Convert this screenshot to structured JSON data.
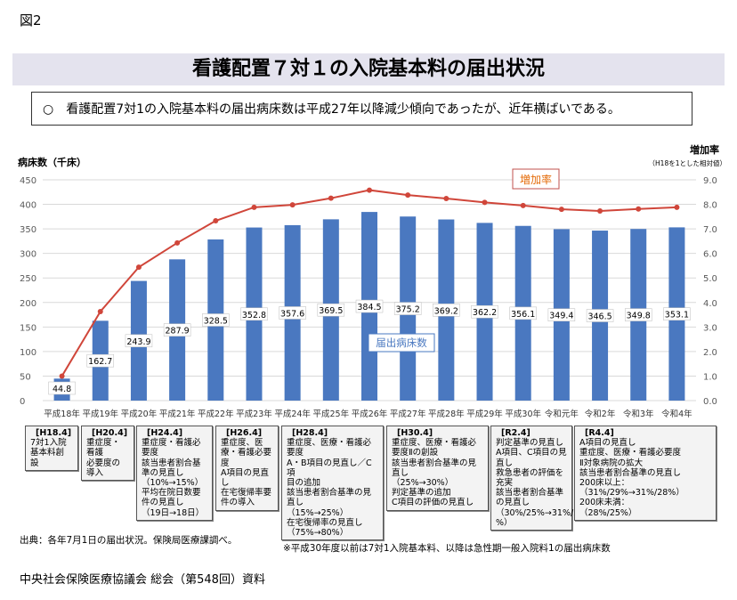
{
  "figure_label": "図2",
  "title": "看護配置７対１の入院基本料の届出状況",
  "summary": "○　看護配置7対1の入院基本料の届出病床数は平成27年以降減少傾向であったが、近年横ばいである。",
  "chart_data": {
    "type": "bar+line",
    "categories": [
      "平成18年",
      "平成19年",
      "平成20年",
      "平成21年",
      "平成22年",
      "平成23年",
      "平成24年",
      "平成25年",
      "平成26年",
      "平成27年",
      "平成28年",
      "平成29年",
      "平成30年",
      "令和元年",
      "令和2年",
      "令和3年",
      "令和4年"
    ],
    "series": [
      {
        "name": "届出病床数",
        "type": "bar",
        "axis": "left",
        "color": "#4a78c0",
        "values": [
          44.8,
          162.7,
          243.9,
          287.9,
          328.5,
          352.8,
          357.6,
          369.5,
          384.5,
          375.2,
          369.2,
          362.2,
          356.1,
          349.4,
          346.5,
          349.8,
          353.1
        ],
        "labels": [
          "44.8",
          "162.7",
          "243.9",
          "287.9",
          "328.5",
          "352.8",
          "357.6",
          "369.5",
          "384.5",
          "375.2",
          "369.2",
          "362.2",
          "356.1",
          "349.4",
          "346.5",
          "349.8",
          "353.1"
        ]
      },
      {
        "name": "増加率",
        "type": "line",
        "axis": "right",
        "color": "#d0463a",
        "values": [
          1.0,
          3.63,
          5.44,
          6.43,
          7.33,
          7.88,
          7.98,
          8.25,
          8.58,
          8.38,
          8.24,
          8.08,
          7.95,
          7.8,
          7.73,
          7.81,
          7.88
        ]
      }
    ],
    "ylabel": "病床数（千床）",
    "y2label": "増加率",
    "y2sublabel": "（H18を1とした相対値）",
    "ylim": [
      0,
      450
    ],
    "y2lim": [
      0,
      9
    ],
    "yticks": [
      "0",
      "50",
      "100",
      "150",
      "200",
      "250",
      "300",
      "350",
      "400",
      "450"
    ],
    "y2ticks": [
      "0.0",
      "1.0",
      "2.0",
      "3.0",
      "4.0",
      "5.0",
      "6.0",
      "7.0",
      "8.0",
      "9.0"
    ],
    "grid": true
  },
  "revisions": [
    {
      "head": "[H18.4]",
      "body": "7対1入院\n基本料創\n設"
    },
    {
      "head": "[H20.4]",
      "body": "重症度・\n看護\n必要度の\n導入"
    },
    {
      "head": "[H24.4]",
      "body": "重症度・看護必\n要度\n該当患者割合基\n準の見直し\n（10%→15%）\n平均在院日数要\n件の見直し\n（19日→18日）"
    },
    {
      "head": "[H26.4]",
      "body": "重症度、医\n療・看護必要\n度\nA項目の見直\nし\n在宅復帰率要\n件の導入"
    },
    {
      "head": "[H28.4]",
      "body": "重症度、医療・看護必\n要度\nA・B項目の見直し／C項\n目の追加\n該当患者割合基準の見\n直し\n（15%→25%）\n在宅復帰率の見直し\n（75%→80%）"
    },
    {
      "head": "[H30.4]",
      "body": "重症度、医療・看護必\n要度Ⅱの創設\n該当患者割合基準の見\n直し\n（25%→30%）\n判定基準の追加\nC項目の評価の見直し"
    },
    {
      "head": "[R2.4]",
      "body": "判定基準の見直し\nA項目、C項目の見\n直し\n救急患者の評価を\n充実\n該当患者割合基準\nの見直し\n（30%/25%→31%/29\n%）"
    },
    {
      "head": "[R4.4]",
      "body": "A項目の見直し\n重症度、医療・看護必要度\nⅡ対象病院の拡大\n該当患者割合基準の見直し\n200床以上：\n（31%/29%→31%/28%）\n200床未満：\n（28%/25%）"
    }
  ],
  "source": "出典：各年7月1日の届出状況。保険局医療課調べ。",
  "note": "※平成30年度以前は7対1入院基本料、以降は急性期一般入院料1の届出病床数",
  "credit": "中央社会保険医療協議会 総会（第548回）資料"
}
